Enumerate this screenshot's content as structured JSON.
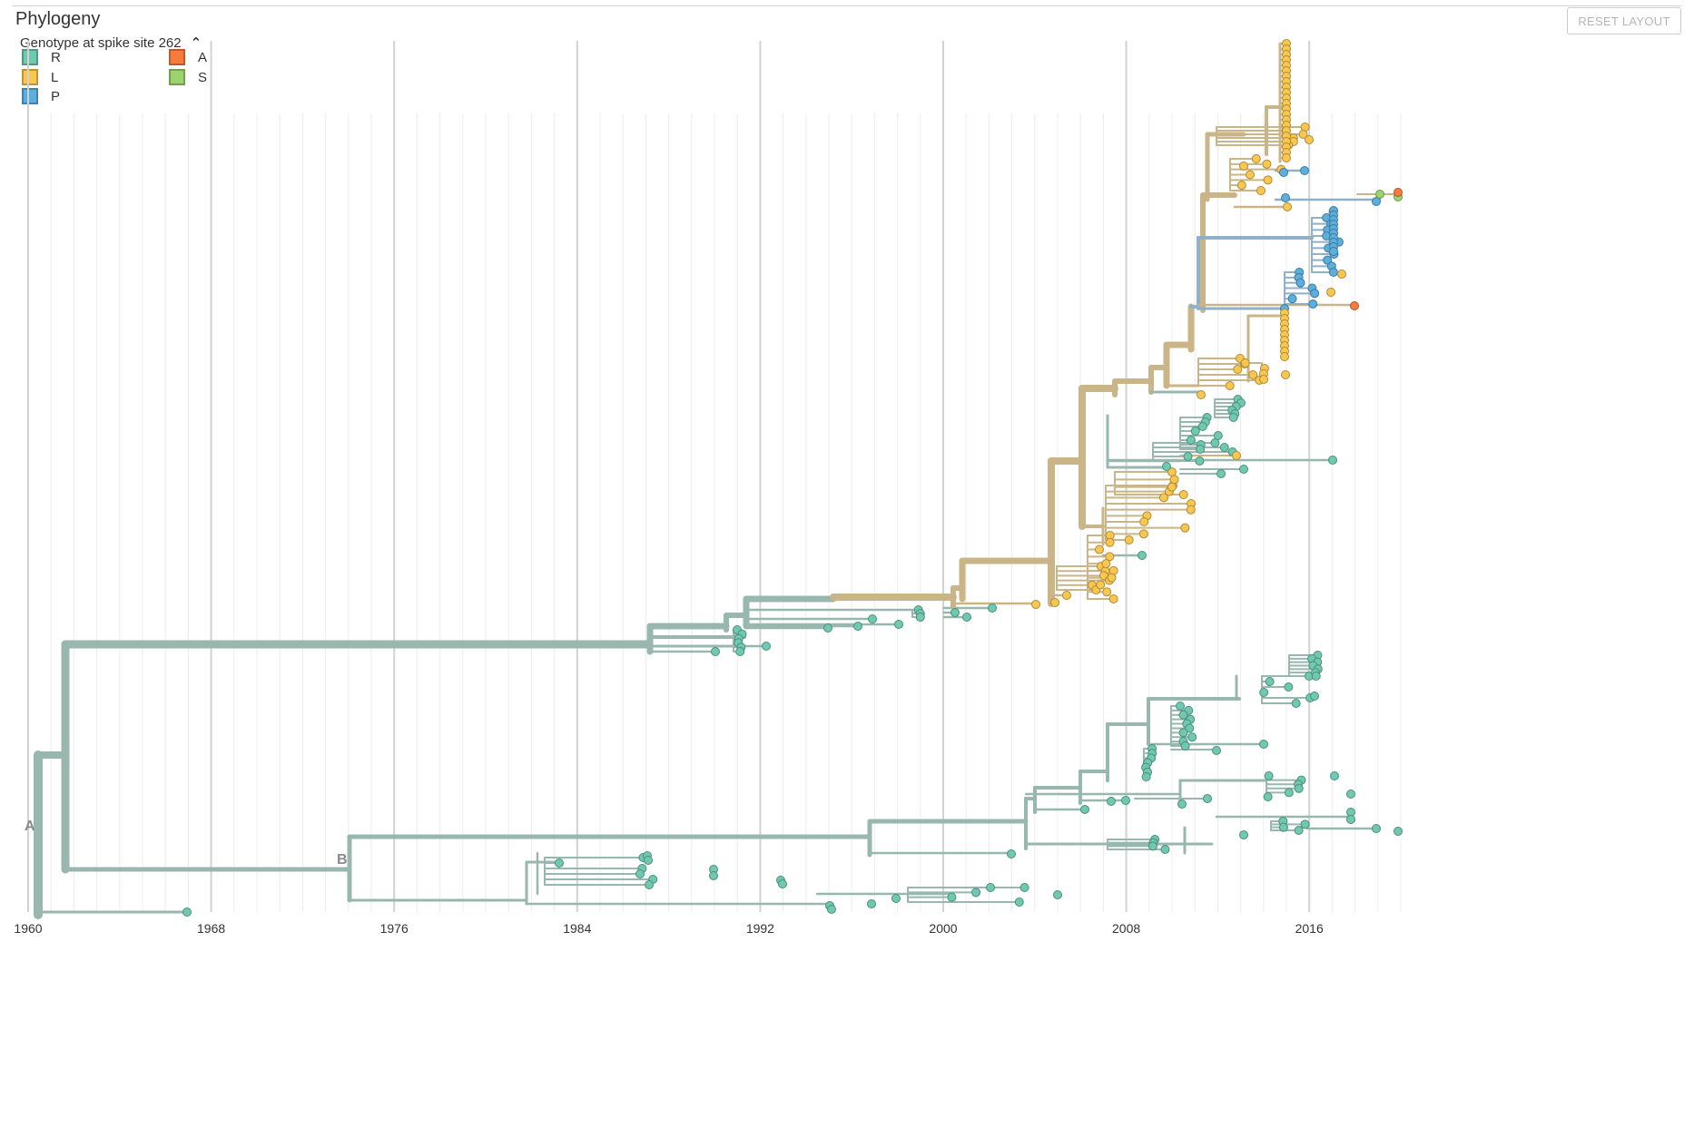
{
  "panel": {
    "title": "Phylogeny",
    "reset_label": "RESET LAYOUT"
  },
  "legend": {
    "title": "Genotype at spike site 262",
    "toggle_icon": "chevron-up-icon",
    "items": [
      {
        "label": "R",
        "color": "#6ec9b0"
      },
      {
        "label": "A",
        "color": "#f77b3c"
      },
      {
        "label": "L",
        "color": "#f9c74f"
      },
      {
        "label": "S",
        "color": "#9bd36f"
      },
      {
        "label": "P",
        "color": "#5aafde"
      }
    ]
  },
  "axis": {
    "ticks": [
      "1960",
      "1968",
      "1976",
      "1984",
      "1992",
      "2000",
      "2008",
      "2016"
    ],
    "tick_years": [
      1960,
      1968,
      1976,
      1984,
      1992,
      2000,
      2008,
      2016
    ],
    "range": [
      1960,
      2020
    ]
  },
  "clade_labels": [
    "A",
    "B"
  ],
  "colors": {
    "branch_R": "#98b7ae",
    "branch_L": "#c9b588",
    "branch_P": "#8fb0c8",
    "branch_A": "#d9a27a",
    "tip_R": "#6ec9b0",
    "tip_L": "#f9c74f",
    "tip_P": "#5aafde",
    "tip_A": "#f77b3c",
    "tip_S": "#9bd36f"
  }
}
